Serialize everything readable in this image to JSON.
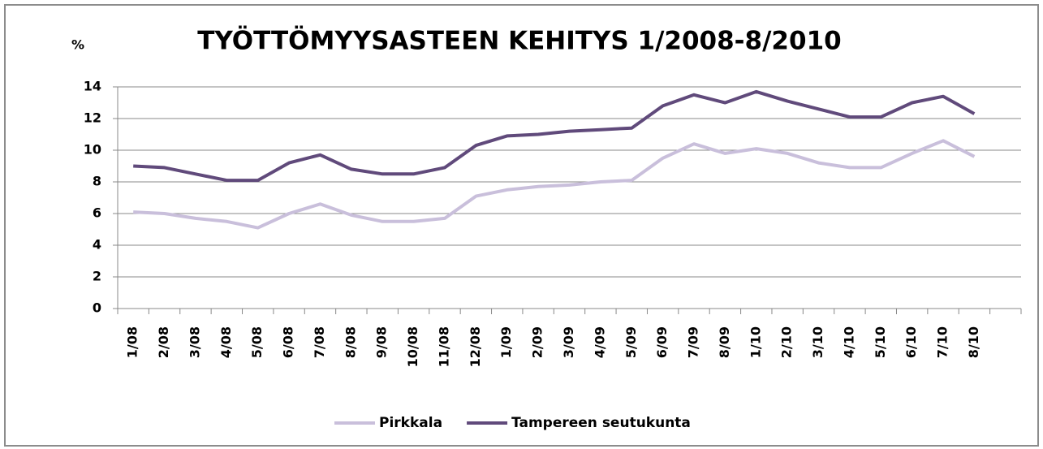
{
  "chart_data": {
    "type": "line",
    "title": "TYÖTTÖMYYSASTEEN KEHITYS 1/2008-8/2010",
    "y_label": "%",
    "categories": [
      "1/08",
      "2/08",
      "3/08",
      "4/08",
      "5/08",
      "6/08",
      "7/08",
      "8/08",
      "9/08",
      "10/08",
      "11/08",
      "12/08",
      "1/09",
      "2/09",
      "3/09",
      "4/09",
      "5/09",
      "6/09",
      "7/09",
      "8/09",
      "1/10",
      "2/10",
      "3/10",
      "4/10",
      "5/10",
      "6/10",
      "7/10",
      "8/10",
      null
    ],
    "series": [
      {
        "name": "Pirkkala",
        "color": "#c9bfdb",
        "values": [
          6.1,
          6.0,
          5.7,
          5.5,
          5.1,
          6.0,
          6.6,
          5.9,
          5.5,
          5.5,
          5.7,
          7.1,
          7.5,
          7.7,
          7.8,
          8.0,
          8.1,
          9.5,
          10.4,
          9.8,
          10.1,
          9.8,
          9.2,
          8.9,
          8.9,
          9.8,
          10.6,
          9.6,
          null
        ]
      },
      {
        "name": "Tampereen seutukunta",
        "color": "#604a7b",
        "values": [
          9.0,
          8.9,
          8.5,
          8.1,
          8.1,
          9.2,
          9.7,
          8.8,
          8.5,
          8.5,
          8.9,
          10.3,
          10.9,
          11.0,
          11.2,
          11.3,
          11.4,
          12.8,
          13.5,
          13.0,
          13.7,
          13.1,
          12.6,
          12.1,
          12.1,
          13.0,
          13.4,
          12.3,
          null
        ]
      }
    ],
    "ylim": [
      0,
      14
    ],
    "yticks": [
      0,
      2,
      4,
      6,
      8,
      10,
      12,
      14
    ],
    "grid": true,
    "legend": "bottom"
  }
}
